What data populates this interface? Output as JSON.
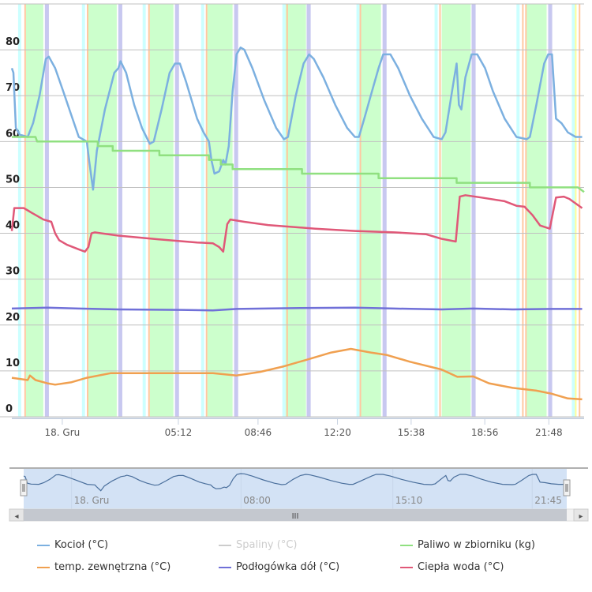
{
  "chart_data": {
    "type": "line",
    "title": "",
    "xlabel": "",
    "ylabel": "",
    "x_unit": "hours relative to 18. Gru 00:00",
    "xlim": [
      -2.26,
      23.38
    ],
    "ylim": [
      0,
      90
    ],
    "y_ticks": [
      0,
      10,
      20,
      30,
      40,
      50,
      60,
      70,
      80
    ],
    "grid": true,
    "x_ticks": [
      {
        "value": 0,
        "label": "18. Gru"
      },
      {
        "value": 5.2,
        "label": "05:12"
      },
      {
        "value": 8.77,
        "label": "08:46"
      },
      {
        "value": 12.33,
        "label": "12:20"
      },
      {
        "value": 15.63,
        "label": "15:38"
      },
      {
        "value": 18.93,
        "label": "18:56"
      },
      {
        "value": 21.8,
        "label": "21:48"
      }
    ],
    "plot_bands": {
      "green": {
        "color": "#ccffcc",
        "ranges": [
          [
            -1.63,
            -0.85
          ],
          [
            1.17,
            2.44
          ],
          [
            3.92,
            4.98
          ],
          [
            6.5,
            7.63
          ],
          [
            10.0,
            10.92
          ],
          [
            13.39,
            14.28
          ],
          [
            17.0,
            18.3
          ],
          [
            20.81,
            21.7
          ]
        ]
      },
      "purple": {
        "color": "#c8c8f0",
        "width": 0.18,
        "starts": [
          -0.78,
          2.51,
          5.05,
          7.7,
          10.95,
          14.35,
          18.34,
          21.77
        ]
      },
      "cyan": {
        "color": "#ccffff",
        "width": 0.14,
        "starts": [
          -1.98,
          0.88,
          3.6,
          6.22,
          9.86,
          13.18,
          16.68,
          20.35,
          22.83
        ]
      },
      "orange": {
        "color": "#ffc8a0",
        "width": 0.07,
        "starts": [
          -1.7,
          1.1,
          3.85,
          6.43,
          10.04,
          13.32,
          16.89,
          20.6,
          20.74,
          23.14
        ]
      },
      "yellow": {
        "color": "#ffff99",
        "width": 0.07,
        "starts": [
          22.97
        ]
      }
    },
    "series": [
      {
        "name": "Kocioł (°C)",
        "color": "#7cb0e0",
        "visible": true,
        "x": [
          -2.26,
          -2.19,
          -2.08,
          -1.91,
          -1.55,
          -1.31,
          -1.02,
          -0.74,
          -0.6,
          -0.32,
          0.04,
          0.39,
          0.74,
          1.1,
          1.2,
          1.38,
          1.55,
          1.91,
          2.33,
          2.51,
          2.61,
          2.86,
          3.22,
          3.57,
          3.92,
          4.1,
          4.45,
          4.81,
          5.05,
          5.27,
          5.55,
          6.04,
          6.33,
          6.57,
          6.68,
          6.82,
          7.03,
          7.21,
          7.31,
          7.46,
          7.63,
          7.81,
          7.99,
          8.16,
          8.52,
          9.05,
          9.58,
          9.93,
          10.11,
          10.46,
          10.81,
          11.06,
          11.27,
          11.7,
          12.23,
          12.76,
          13.11,
          13.29,
          13.53,
          13.82,
          14.17,
          14.38,
          14.7,
          15.05,
          15.58,
          16.11,
          16.64,
          17.0,
          17.17,
          17.53,
          17.67,
          17.77,
          17.88,
          18.06,
          18.34,
          18.59,
          18.94,
          19.29,
          19.82,
          20.35,
          20.81,
          20.95,
          21.24,
          21.59,
          21.77,
          21.94,
          22.12,
          22.37,
          22.65,
          23.0,
          23.29
        ],
        "y": [
          76,
          75,
          63,
          61.5,
          61,
          64,
          70,
          78,
          78.5,
          76,
          71,
          66,
          61,
          60,
          56,
          49.5,
          58,
          67,
          75,
          76,
          77.5,
          75,
          68,
          63,
          59.5,
          60,
          67,
          75,
          77,
          77,
          73,
          65,
          62,
          60,
          56,
          53,
          53.5,
          56,
          55,
          59,
          71,
          79,
          80.5,
          80,
          76,
          69,
          63,
          60.5,
          61,
          70,
          77,
          79,
          78,
          74,
          68,
          63,
          61,
          61,
          65,
          70,
          76,
          79,
          79,
          76,
          70,
          65,
          61,
          60.5,
          62,
          73,
          77,
          68,
          67,
          74,
          79,
          79,
          76,
          71,
          65,
          61,
          60.5,
          61,
          68,
          77,
          79,
          79,
          65,
          64,
          62,
          61,
          61
        ]
      },
      {
        "name": "Spaliny (°C)",
        "color": "#cccccc",
        "visible": false,
        "x": [],
        "y": []
      },
      {
        "name": "Paliwo w zbiorniku (kg)",
        "color": "#90e080",
        "visible": true,
        "x": [
          -2.26,
          -1.2,
          -1.13,
          1.59,
          1.59,
          2.26,
          2.26,
          4.35,
          4.35,
          6.57,
          6.57,
          7.1,
          7.1,
          7.63,
          7.63,
          10.74,
          10.74,
          14.17,
          14.17,
          17.67,
          17.67,
          20.95,
          20.95,
          23.1,
          23.38
        ],
        "y": [
          61,
          61,
          60,
          60,
          59,
          59,
          58,
          58,
          57,
          57,
          56,
          56,
          55,
          55,
          54,
          54,
          53,
          53,
          52,
          52,
          51,
          51,
          50,
          50,
          49
        ]
      },
      {
        "name": "temp. zewnętrzna (°C)",
        "color": "#f0a050",
        "visible": true,
        "x": [
          -2.26,
          -1.55,
          -1.45,
          -1.2,
          -0.67,
          -0.32,
          0.39,
          1.1,
          2.16,
          4.28,
          6.75,
          7.81,
          8.87,
          9.93,
          10.99,
          12.05,
          12.93,
          13.82,
          14.52,
          15.58,
          16.99,
          17.7,
          18.41,
          19.12,
          20.18,
          21.24,
          21.94,
          22.65,
          23.29
        ],
        "y": [
          8.5,
          8,
          9,
          8,
          7.3,
          7,
          7.5,
          8.5,
          9.5,
          9.5,
          9.5,
          9,
          9.8,
          11,
          12.5,
          14,
          14.8,
          14,
          13.5,
          12,
          10.3,
          8.7,
          8.8,
          7.3,
          6.3,
          5.7,
          5,
          4,
          3.8
        ]
      },
      {
        "name": "Podłogówka dół (°C)",
        "color": "#7070d8",
        "visible": true,
        "x": [
          -2.26,
          -0.67,
          0.74,
          2.51,
          5.34,
          6.75,
          7.81,
          10.64,
          13.11,
          14.88,
          17.0,
          18.41,
          20.18,
          21.94,
          23.29
        ],
        "y": [
          23.6,
          23.8,
          23.6,
          23.4,
          23.3,
          23.2,
          23.5,
          23.7,
          23.8,
          23.6,
          23.4,
          23.6,
          23.4,
          23.5,
          23.5
        ]
      },
      {
        "name": "Ciepła woda (°C)",
        "color": "#e05878",
        "visible": true,
        "x": [
          -2.26,
          -2.15,
          -1.73,
          -1.55,
          -1.38,
          -1.2,
          -0.85,
          -0.49,
          -0.32,
          -0.14,
          0.21,
          0.74,
          1.02,
          1.17,
          1.31,
          1.45,
          2.51,
          4.28,
          6.04,
          6.75,
          7.03,
          7.21,
          7.39,
          7.53,
          8.16,
          9.22,
          11.34,
          13.11,
          14.88,
          16.29,
          16.99,
          17.63,
          17.81,
          18.06,
          18.76,
          19.82,
          20.35,
          20.71,
          21.06,
          21.41,
          21.84,
          22.12,
          22.47,
          22.72,
          23.0,
          23.29
        ],
        "y": [
          40.5,
          45.5,
          45.5,
          45,
          44.5,
          44,
          43,
          42.5,
          40,
          38.5,
          37.5,
          36.5,
          36,
          37,
          40,
          40.2,
          39.5,
          38.7,
          38,
          37.8,
          37,
          36,
          42,
          43,
          42.5,
          41.8,
          41,
          40.5,
          40.2,
          39.8,
          38.8,
          38.2,
          48,
          48.3,
          47.8,
          47,
          46,
          45.8,
          44,
          41.7,
          41,
          47.8,
          48,
          47.5,
          46.5,
          45.5
        ]
      }
    ]
  },
  "navigator": {
    "x_ticks": [
      {
        "value": 0,
        "label": "18. Gru"
      },
      {
        "value": 8,
        "label": "08:00"
      },
      {
        "value": 15.17,
        "label": "15:10"
      },
      {
        "value": 21.75,
        "label": "21:45"
      }
    ],
    "scrollbar_grip": "III",
    "left_arrow": "◂",
    "right_arrow": "▸"
  },
  "legend": [
    {
      "label": "Kocioł (°C)",
      "color": "#7cb0e0",
      "visible": true
    },
    {
      "label": "Spaliny (°C)",
      "color": "#cccccc",
      "visible": false
    },
    {
      "label": "Paliwo w zbiorniku (kg)",
      "color": "#90e080",
      "visible": true
    },
    {
      "label": "temp. zewnętrzna (°C)",
      "color": "#f0a050",
      "visible": true
    },
    {
      "label": "Podłogówka dół (°C)",
      "color": "#7070d8",
      "visible": true
    },
    {
      "label": "Ciepła woda (°C)",
      "color": "#e05878",
      "visible": true
    }
  ]
}
